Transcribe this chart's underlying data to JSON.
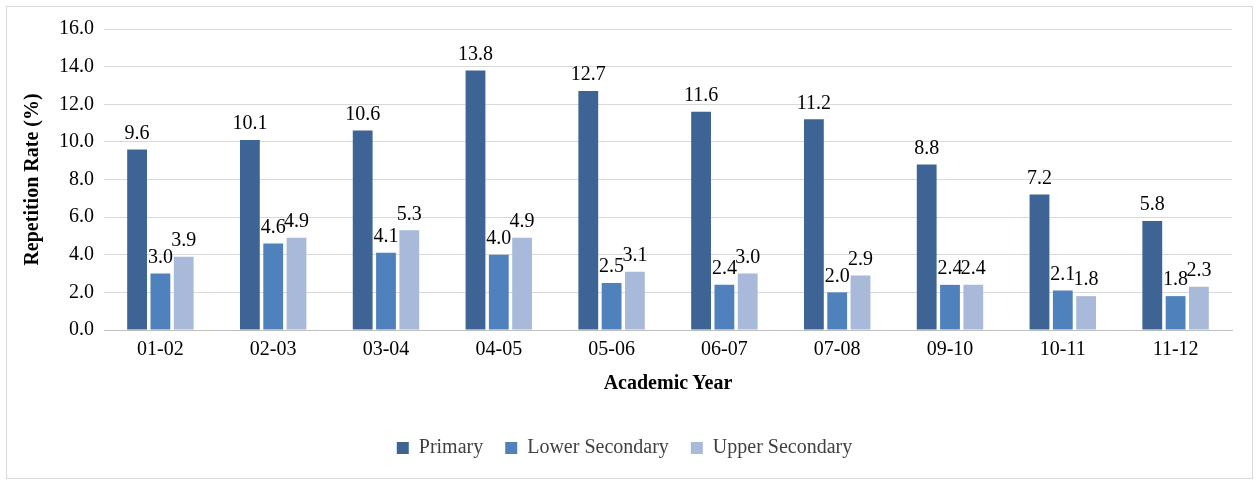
{
  "chart_data": {
    "type": "bar",
    "xlabel": "Academic Year",
    "ylabel": "Repetition Rate (%)",
    "categories": [
      "01-02",
      "02-03",
      "03-04",
      "04-05",
      "05-06",
      "06-07",
      "07-08",
      "09-10",
      "10-11",
      "11-12"
    ],
    "series": [
      {
        "name": "Primary",
        "color": "#3e6496",
        "values": [
          9.6,
          10.1,
          10.6,
          13.8,
          12.7,
          11.6,
          11.2,
          8.8,
          7.2,
          5.8
        ],
        "value_labels": [
          "9.6",
          "10.1",
          "10.6",
          "13.8",
          "12.7",
          "11.6",
          "11.2",
          "8.8",
          "7.2",
          "5.8"
        ]
      },
      {
        "name": "Lower Secondary",
        "color": "#4f81bd",
        "values": [
          3.0,
          4.6,
          4.1,
          4.0,
          2.5,
          2.4,
          2.0,
          2.4,
          2.1,
          1.8
        ],
        "value_labels": [
          "3.0",
          "4.6",
          "4.1",
          "4.0",
          "2.5",
          "2.4",
          "2.0",
          "2.4",
          "2.1",
          "1.8"
        ]
      },
      {
        "name": "Upper Secondary",
        "color": "#a9b9d9",
        "values": [
          3.9,
          4.9,
          5.3,
          4.9,
          3.1,
          3.0,
          2.9,
          2.4,
          1.8,
          2.3
        ],
        "value_labels": [
          "3.9",
          "4.9",
          "5.3",
          "4.9",
          "3.1",
          "3.0",
          "2.9",
          "2.4",
          "1.8",
          "2.3"
        ]
      }
    ],
    "ylim": [
      0,
      16
    ],
    "yticks": [
      {
        "value": 0,
        "label": "0.0"
      },
      {
        "value": 2,
        "label": "2.0"
      },
      {
        "value": 4,
        "label": "4.0"
      },
      {
        "value": 6,
        "label": "6.0"
      },
      {
        "value": 8,
        "label": "8.0"
      },
      {
        "value": 10,
        "label": "10.0"
      },
      {
        "value": 12,
        "label": "12.0"
      },
      {
        "value": 14,
        "label": "14.0"
      },
      {
        "value": 16,
        "label": "16.0"
      }
    ],
    "grid": "y",
    "legend": "bottom"
  }
}
